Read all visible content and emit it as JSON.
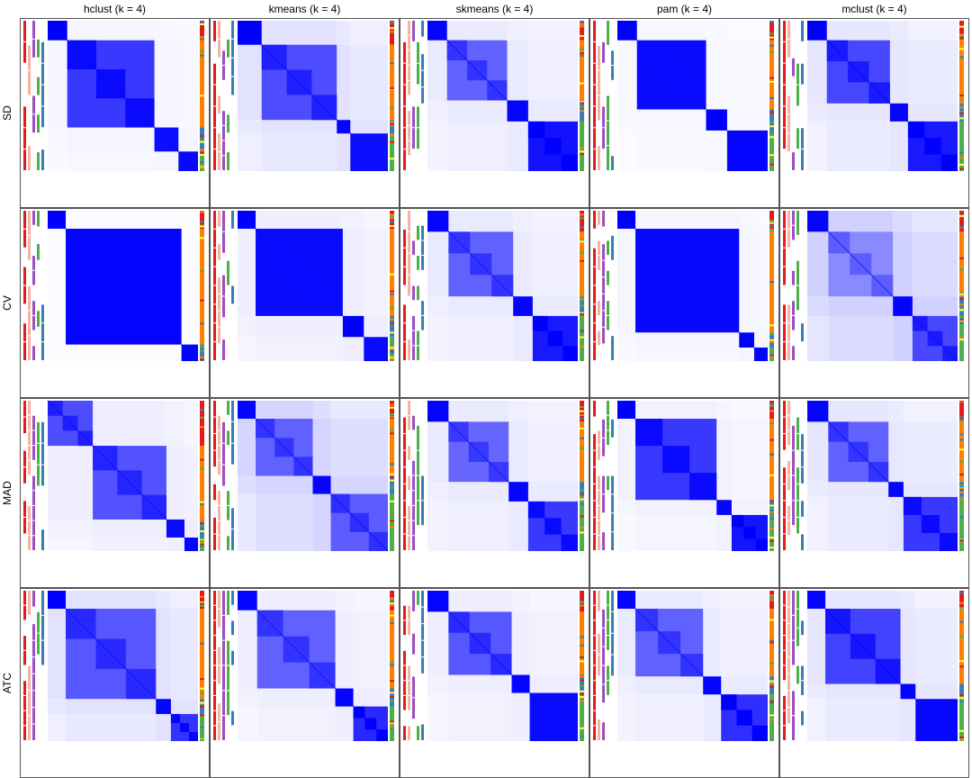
{
  "chart_data": {
    "type": "heatmap",
    "title": "",
    "columns": [
      "hclust (k = 4)",
      "kmeans (k = 4)",
      "skmeans (k = 4)",
      "pam (k = 4)",
      "mclust (k = 4)"
    ],
    "rows": [
      "SD",
      "CV",
      "MAD",
      "ATC"
    ],
    "value_range": [
      0,
      1
    ],
    "colors": {
      "low": "#ffffff",
      "high": "#0000ff",
      "annotation": [
        "#e41a1c",
        "#f8b2a0",
        "#9c4fc2",
        "#4daf4a",
        "#377eb8",
        "#ff7f00",
        "#ffff33"
      ]
    },
    "panels": [
      {
        "row": "SD",
        "column": "hclust (k = 4)",
        "blocks": [
          {
            "size": 0.13,
            "value": 1.0
          },
          {
            "size": 0.58,
            "value": 0.78
          },
          {
            "size": 0.16,
            "value": 0.95
          },
          {
            "size": 0.13,
            "value": 0.97
          }
        ],
        "off": 0.05,
        "ann": [
          [
            3,
            2
          ],
          [
            1,
            0,
            1
          ],
          [
            2,
            1
          ]
        ]
      },
      {
        "row": "SD",
        "column": "kmeans (k = 4)",
        "blocks": [
          {
            "size": 0.16,
            "value": 1.0
          },
          {
            "size": 0.5,
            "value": 0.7
          },
          {
            "size": 0.09,
            "value": 0.98
          },
          {
            "size": 0.25,
            "value": 0.95
          }
        ],
        "off": 0.14,
        "ann": [
          [
            3,
            2
          ],
          [
            0,
            1,
            3
          ],
          [
            2,
            4
          ]
        ]
      },
      {
        "row": "SD",
        "column": "skmeans (k = 4)",
        "blocks": [
          {
            "size": 0.13,
            "value": 0.98
          },
          {
            "size": 0.4,
            "value": 0.62
          },
          {
            "size": 0.14,
            "value": 0.98
          },
          {
            "size": 0.33,
            "value": 0.93
          }
        ],
        "off": 0.1,
        "ann": [
          [
            0,
            3
          ],
          [
            1,
            0,
            1
          ],
          [
            2,
            5
          ]
        ]
      },
      {
        "row": "SD",
        "column": "pam (k = 4)",
        "blocks": [
          {
            "size": 0.13,
            "value": 1.0
          },
          {
            "size": 0.46,
            "value": 0.96
          },
          {
            "size": 0.14,
            "value": 1.0
          },
          {
            "size": 0.27,
            "value": 0.98
          }
        ],
        "off": 0.04,
        "ann": [
          [
            3,
            1
          ],
          [
            1,
            0,
            1
          ],
          [
            2,
            4
          ]
        ]
      },
      {
        "row": "SD",
        "column": "mclust (k = 4)",
        "blocks": [
          {
            "size": 0.13,
            "value": 1.0
          },
          {
            "size": 0.42,
            "value": 0.72
          },
          {
            "size": 0.12,
            "value": 0.98
          },
          {
            "size": 0.33,
            "value": 0.9
          }
        ],
        "off": 0.12,
        "ann": [
          [
            3,
            2
          ],
          [
            0,
            1,
            2
          ],
          [
            2,
            1
          ]
        ]
      },
      {
        "row": "CV",
        "column": "hclust (k = 4)",
        "blocks": [
          {
            "size": 0.12,
            "value": 1.0
          },
          {
            "size": 0.77,
            "value": 0.98
          },
          {
            "size": 0.11,
            "value": 0.99
          }
        ],
        "off": 0.02,
        "ann": [
          [
            3,
            6
          ],
          [
            0,
            0,
            1
          ],
          [
            2,
            4
          ]
        ]
      },
      {
        "row": "CV",
        "column": "kmeans (k = 4)",
        "blocks": [
          {
            "size": 0.12,
            "value": 1.0
          },
          {
            "size": 0.58,
            "value": 0.96
          },
          {
            "size": 0.14,
            "value": 1.0
          },
          {
            "size": 0.16,
            "value": 0.96
          }
        ],
        "off": 0.08,
        "ann": [
          [
            3,
            2
          ],
          [
            1,
            0,
            1
          ],
          [
            2,
            5
          ]
        ]
      },
      {
        "row": "CV",
        "column": "skmeans (k = 4)",
        "blocks": [
          {
            "size": 0.14,
            "value": 0.98
          },
          {
            "size": 0.43,
            "value": 0.62
          },
          {
            "size": 0.13,
            "value": 0.98
          },
          {
            "size": 0.3,
            "value": 0.9
          }
        ],
        "off": 0.1,
        "ann": [
          [
            0,
            3
          ],
          [
            1,
            0,
            1
          ],
          [
            2,
            4
          ]
        ]
      },
      {
        "row": "CV",
        "column": "pam (k = 4)",
        "blocks": [
          {
            "size": 0.12,
            "value": 1.0
          },
          {
            "size": 0.69,
            "value": 0.97
          },
          {
            "size": 0.1,
            "value": 1.0
          },
          {
            "size": 0.09,
            "value": 0.98
          }
        ],
        "off": 0.05,
        "ann": [
          [
            3,
            2
          ],
          [
            1,
            0,
            1
          ],
          [
            2,
            4
          ]
        ]
      },
      {
        "row": "CV",
        "column": "mclust (k = 4)",
        "blocks": [
          {
            "size": 0.14,
            "value": 0.98
          },
          {
            "size": 0.43,
            "value": 0.46
          },
          {
            "size": 0.13,
            "value": 0.99
          },
          {
            "size": 0.3,
            "value": 0.72
          }
        ],
        "off": 0.22,
        "ann": [
          [
            0,
            3
          ],
          [
            1,
            1,
            1
          ],
          [
            2,
            5
          ]
        ]
      },
      {
        "row": "MAD",
        "column": "hclust (k = 4)",
        "blocks": [
          {
            "size": 0.3,
            "value": 0.7
          },
          {
            "size": 0.49,
            "value": 0.68
          },
          {
            "size": 0.12,
            "value": 0.96
          },
          {
            "size": 0.09,
            "value": 0.98
          }
        ],
        "off": 0.08,
        "ann": [
          [
            1,
            2
          ],
          [
            1,
            0,
            1
          ],
          [
            2,
            4
          ]
        ]
      },
      {
        "row": "MAD",
        "column": "kmeans (k = 4)",
        "blocks": [
          {
            "size": 0.12,
            "value": 0.98
          },
          {
            "size": 0.38,
            "value": 0.62
          },
          {
            "size": 0.12,
            "value": 0.98
          },
          {
            "size": 0.38,
            "value": 0.64
          }
        ],
        "off": 0.2,
        "ann": [
          [
            3,
            2
          ],
          [
            0,
            1,
            3
          ],
          [
            2,
            1
          ]
        ]
      },
      {
        "row": "MAD",
        "column": "skmeans (k = 4)",
        "blocks": [
          {
            "size": 0.14,
            "value": 0.98
          },
          {
            "size": 0.4,
            "value": 0.6
          },
          {
            "size": 0.13,
            "value": 0.98
          },
          {
            "size": 0.33,
            "value": 0.78
          }
        ],
        "off": 0.1,
        "ann": [
          [
            0,
            3
          ],
          [
            1,
            0,
            1
          ],
          [
            2,
            4
          ]
        ]
      },
      {
        "row": "MAD",
        "column": "pam (k = 4)",
        "blocks": [
          {
            "size": 0.12,
            "value": 1.0
          },
          {
            "size": 0.54,
            "value": 0.78
          },
          {
            "size": 0.1,
            "value": 0.98
          },
          {
            "size": 0.24,
            "value": 0.92
          }
        ],
        "off": 0.06,
        "ann": [
          [
            3,
            2
          ],
          [
            1,
            0,
            1
          ],
          [
            2,
            1
          ]
        ]
      },
      {
        "row": "MAD",
        "column": "mclust (k = 4)",
        "blocks": [
          {
            "size": 0.14,
            "value": 0.98
          },
          {
            "size": 0.4,
            "value": 0.62
          },
          {
            "size": 0.1,
            "value": 0.98
          },
          {
            "size": 0.36,
            "value": 0.78
          }
        ],
        "off": 0.12,
        "ann": [
          [
            3,
            2
          ],
          [
            0,
            1,
            2
          ],
          [
            2,
            1
          ]
        ]
      },
      {
        "row": "ATC",
        "column": "hclust (k = 4)",
        "blocks": [
          {
            "size": 0.12,
            "value": 1.0
          },
          {
            "size": 0.6,
            "value": 0.66
          },
          {
            "size": 0.1,
            "value": 0.98
          },
          {
            "size": 0.18,
            "value": 0.8
          }
        ],
        "off": 0.14,
        "ann": [
          [
            3,
            2
          ],
          [
            0,
            1,
            3
          ],
          [
            2,
            5
          ]
        ]
      },
      {
        "row": "ATC",
        "column": "kmeans (k = 4)",
        "blocks": [
          {
            "size": 0.13,
            "value": 0.98
          },
          {
            "size": 0.52,
            "value": 0.62
          },
          {
            "size": 0.12,
            "value": 0.98
          },
          {
            "size": 0.23,
            "value": 0.84
          }
        ],
        "off": 0.08,
        "ann": [
          [
            3,
            2
          ],
          [
            1,
            0,
            1
          ],
          [
            2,
            4
          ]
        ]
      },
      {
        "row": "ATC",
        "column": "skmeans (k = 4)",
        "blocks": [
          {
            "size": 0.14,
            "value": 0.98
          },
          {
            "size": 0.42,
            "value": 0.66
          },
          {
            "size": 0.12,
            "value": 0.98
          },
          {
            "size": 0.32,
            "value": 0.96
          }
        ],
        "off": 0.08,
        "ann": [
          [
            3,
            2
          ],
          [
            0,
            1,
            1
          ],
          [
            2,
            5
          ]
        ]
      },
      {
        "row": "ATC",
        "column": "pam (k = 4)",
        "blocks": [
          {
            "size": 0.12,
            "value": 0.98
          },
          {
            "size": 0.45,
            "value": 0.62
          },
          {
            "size": 0.12,
            "value": 0.98
          },
          {
            "size": 0.31,
            "value": 0.82
          }
        ],
        "off": 0.1,
        "ann": [
          [
            3,
            2
          ],
          [
            1,
            0,
            1
          ],
          [
            2,
            1
          ]
        ]
      },
      {
        "row": "ATC",
        "column": "mclust (k = 4)",
        "blocks": [
          {
            "size": 0.12,
            "value": 0.98
          },
          {
            "size": 0.5,
            "value": 0.74
          },
          {
            "size": 0.1,
            "value": 0.98
          },
          {
            "size": 0.28,
            "value": 0.97
          }
        ],
        "off": 0.12,
        "ann": [
          [
            3,
            2
          ],
          [
            0,
            1,
            2
          ],
          [
            2,
            1
          ]
        ]
      }
    ]
  }
}
